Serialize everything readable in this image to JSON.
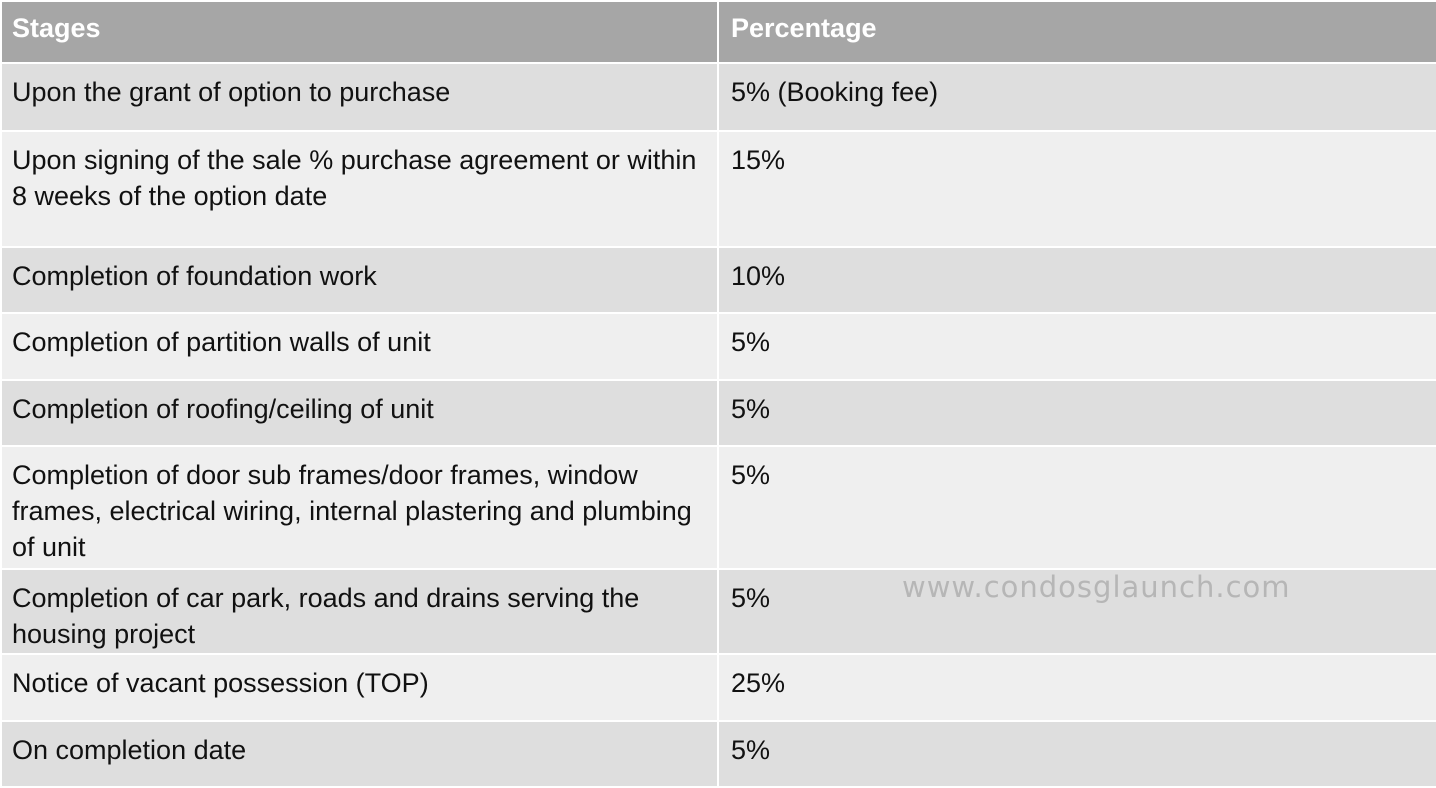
{
  "table": {
    "headers": {
      "stage": "Stages",
      "percentage": "Percentage"
    },
    "rows": [
      {
        "stage": "Upon the grant of option to purchase",
        "percentage": "5% (Booking fee)"
      },
      {
        "stage": "Upon signing of the sale % purchase agreement or within 8 weeks of the option date",
        "percentage": "15%"
      },
      {
        "stage": "Completion of foundation work",
        "percentage": "10%"
      },
      {
        "stage": "Completion of partition walls of unit",
        "percentage": "5%"
      },
      {
        "stage": "Completion of roofing/ceiling of unit",
        "percentage": "5%"
      },
      {
        "stage": "Completion of door sub frames/door frames, window frames, electrical wiring, internal plastering and plumbing of unit",
        "percentage": "5%"
      },
      {
        "stage": "Completion of car park, roads and drains serving the housing project",
        "percentage": "5%"
      },
      {
        "stage": "Notice of vacant possession (TOP)",
        "percentage": "25%"
      },
      {
        "stage": "On completion date",
        "percentage": "5%"
      }
    ]
  },
  "watermark": "www.condosglaunch.com",
  "colors": {
    "header_bg": "#a6a6a6",
    "row_dark": "#dedede",
    "row_light": "#efefef"
  }
}
